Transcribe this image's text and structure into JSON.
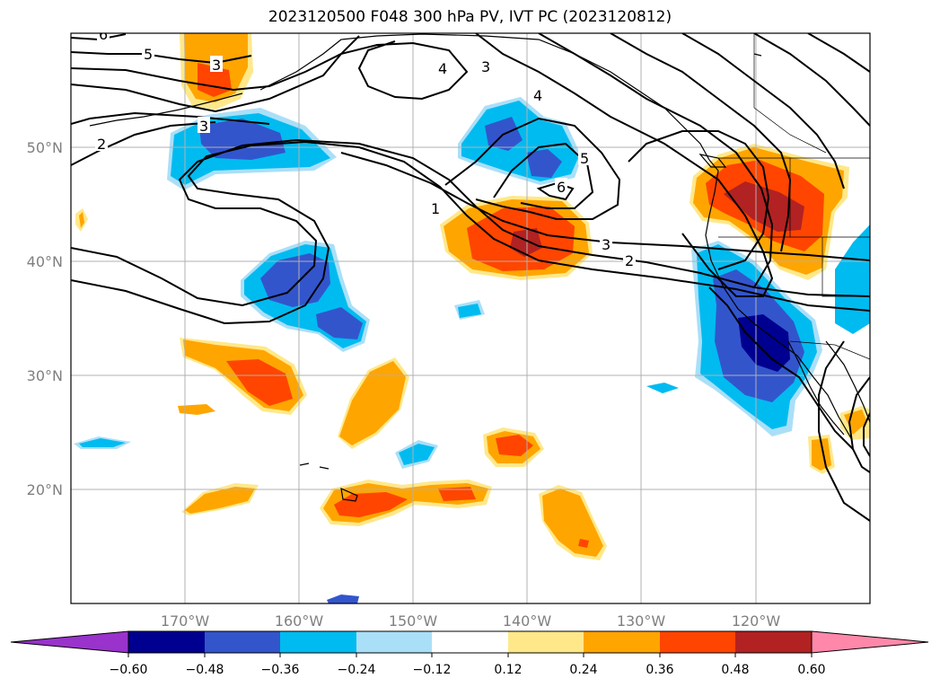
{
  "title": "2023120500 F048 300 hPa PV, IVT PC (2023120812)",
  "map": {
    "lon_range": [
      -180,
      -110
    ],
    "lat_range": [
      10,
      60
    ],
    "lon_ticks": [
      "170°W",
      "160°W",
      "150°W",
      "140°W",
      "130°W",
      "120°W"
    ],
    "lat_ticks": [
      "50°N",
      "40°N",
      "30°N",
      "20°N"
    ],
    "gridlines": true
  },
  "contour_labels": [
    "6",
    "5",
    "4",
    "3",
    "3",
    "2",
    "3",
    "4",
    "5",
    "6",
    "1",
    "3",
    "2"
  ],
  "colorbar": {
    "ticks": [
      "−0.60",
      "−0.48",
      "−0.36",
      "−0.24",
      "−0.12",
      "0.12",
      "0.24",
      "0.36",
      "0.48",
      "0.60"
    ],
    "colors": [
      "#9933cc",
      "#000090",
      "#3355cc",
      "#00bbf0",
      "#aadff8",
      "#ffffff",
      "#ffe88a",
      "#ffa500",
      "#ff4500",
      "#b22222",
      "#ff88aa"
    ],
    "extend": "both"
  }
}
